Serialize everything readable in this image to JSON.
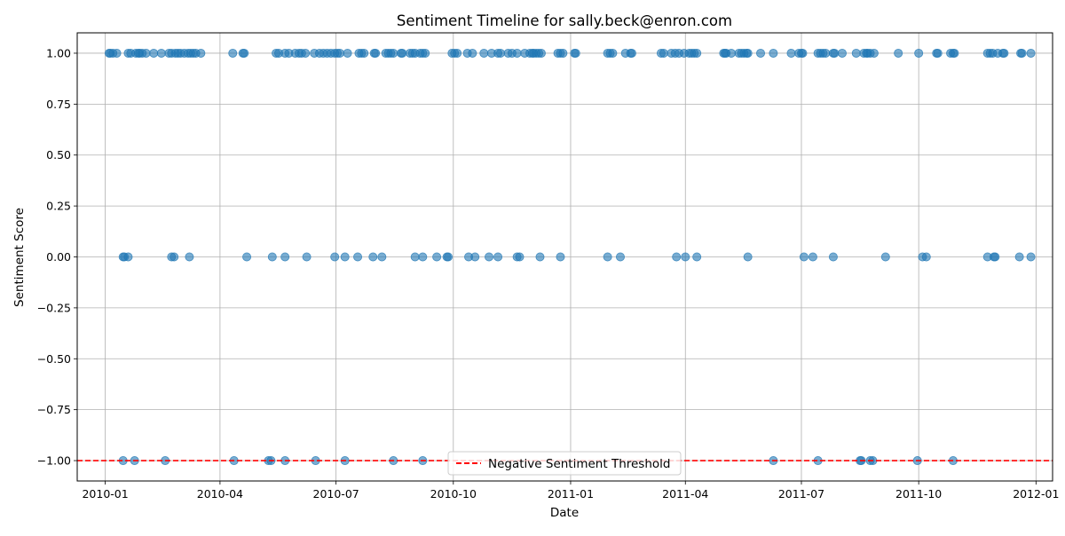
{
  "chart_data": {
    "type": "scatter",
    "title": "Sentiment Timeline for sally.beck@enron.com",
    "xlabel": "Date",
    "ylabel": "Sentiment Score",
    "xlim": [
      "2009-12-10",
      "2012-01-14"
    ],
    "ylim": [
      -1.1,
      1.1
    ],
    "x_ticks": [
      "2010-01",
      "2010-04",
      "2010-07",
      "2010-10",
      "2011-01",
      "2011-04",
      "2011-07",
      "2011-10",
      "2012-01"
    ],
    "x_tick_dates": [
      "2010-01-01",
      "2010-04-01",
      "2010-07-01",
      "2010-10-01",
      "2011-01-01",
      "2011-04-01",
      "2011-07-01",
      "2011-10-01",
      "2012-01-01"
    ],
    "y_ticks": [
      1.0,
      0.75,
      0.5,
      0.25,
      0.0,
      -0.25,
      -0.5,
      -0.75,
      -1.0
    ],
    "y_tick_labels": [
      "1.00",
      "0.75",
      "0.50",
      "0.25",
      "0.00",
      "−0.25",
      "−0.50",
      "−0.75",
      "−1.00"
    ],
    "grid": true,
    "series": [
      {
        "color": "#1f77b4",
        "points": [
          {
            "x": "2010-01-04",
            "y": 1
          },
          {
            "x": "2010-01-05",
            "y": 1
          },
          {
            "x": "2010-01-07",
            "y": 1
          },
          {
            "x": "2010-01-10",
            "y": 1
          },
          {
            "x": "2010-01-19",
            "y": 1
          },
          {
            "x": "2010-01-21",
            "y": 1
          },
          {
            "x": "2010-01-25",
            "y": 1
          },
          {
            "x": "2010-01-27",
            "y": 1
          },
          {
            "x": "2010-01-28",
            "y": 1
          },
          {
            "x": "2010-01-30",
            "y": 1
          },
          {
            "x": "2010-02-02",
            "y": 1
          },
          {
            "x": "2010-02-08",
            "y": 1
          },
          {
            "x": "2010-02-14",
            "y": 1
          },
          {
            "x": "2010-02-20",
            "y": 1
          },
          {
            "x": "2010-02-22",
            "y": 1
          },
          {
            "x": "2010-02-25",
            "y": 1
          },
          {
            "x": "2010-02-27",
            "y": 1
          },
          {
            "x": "2010-03-01",
            "y": 1
          },
          {
            "x": "2010-03-04",
            "y": 1
          },
          {
            "x": "2010-03-07",
            "y": 1
          },
          {
            "x": "2010-03-09",
            "y": 1
          },
          {
            "x": "2010-03-11",
            "y": 1
          },
          {
            "x": "2010-03-13",
            "y": 1
          },
          {
            "x": "2010-03-17",
            "y": 1
          },
          {
            "x": "2010-04-11",
            "y": 1
          },
          {
            "x": "2010-04-19",
            "y": 1
          },
          {
            "x": "2010-04-20",
            "y": 1
          },
          {
            "x": "2010-05-15",
            "y": 1
          },
          {
            "x": "2010-05-17",
            "y": 1
          },
          {
            "x": "2010-05-22",
            "y": 1
          },
          {
            "x": "2010-05-25",
            "y": 1
          },
          {
            "x": "2010-05-30",
            "y": 1
          },
          {
            "x": "2010-06-02",
            "y": 1
          },
          {
            "x": "2010-06-04",
            "y": 1
          },
          {
            "x": "2010-06-07",
            "y": 1
          },
          {
            "x": "2010-06-14",
            "y": 1
          },
          {
            "x": "2010-06-18",
            "y": 1
          },
          {
            "x": "2010-06-21",
            "y": 1
          },
          {
            "x": "2010-06-24",
            "y": 1
          },
          {
            "x": "2010-06-27",
            "y": 1
          },
          {
            "x": "2010-06-30",
            "y": 1
          },
          {
            "x": "2010-07-02",
            "y": 1
          },
          {
            "x": "2010-07-04",
            "y": 1
          },
          {
            "x": "2010-07-10",
            "y": 1
          },
          {
            "x": "2010-07-19",
            "y": 1
          },
          {
            "x": "2010-07-21",
            "y": 1
          },
          {
            "x": "2010-07-23",
            "y": 1
          },
          {
            "x": "2010-07-31",
            "y": 1
          },
          {
            "x": "2010-08-01",
            "y": 1
          },
          {
            "x": "2010-08-09",
            "y": 1
          },
          {
            "x": "2010-08-11",
            "y": 1
          },
          {
            "x": "2010-08-13",
            "y": 1
          },
          {
            "x": "2010-08-15",
            "y": 1
          },
          {
            "x": "2010-08-21",
            "y": 1
          },
          {
            "x": "2010-08-22",
            "y": 1
          },
          {
            "x": "2010-08-28",
            "y": 1
          },
          {
            "x": "2010-08-30",
            "y": 1
          },
          {
            "x": "2010-09-01",
            "y": 1
          },
          {
            "x": "2010-09-05",
            "y": 1
          },
          {
            "x": "2010-09-07",
            "y": 1
          },
          {
            "x": "2010-09-09",
            "y": 1
          },
          {
            "x": "2010-09-30",
            "y": 1
          },
          {
            "x": "2010-10-02",
            "y": 1
          },
          {
            "x": "2010-10-04",
            "y": 1
          },
          {
            "x": "2010-10-12",
            "y": 1
          },
          {
            "x": "2010-10-16",
            "y": 1
          },
          {
            "x": "2010-10-25",
            "y": 1
          },
          {
            "x": "2010-10-31",
            "y": 1
          },
          {
            "x": "2010-11-05",
            "y": 1
          },
          {
            "x": "2010-11-07",
            "y": 1
          },
          {
            "x": "2010-11-13",
            "y": 1
          },
          {
            "x": "2010-11-16",
            "y": 1
          },
          {
            "x": "2010-11-20",
            "y": 1
          },
          {
            "x": "2010-11-26",
            "y": 1
          },
          {
            "x": "2010-11-30",
            "y": 1
          },
          {
            "x": "2010-12-02",
            "y": 1
          },
          {
            "x": "2010-12-03",
            "y": 1
          },
          {
            "x": "2010-12-05",
            "y": 1
          },
          {
            "x": "2010-12-07",
            "y": 1
          },
          {
            "x": "2010-12-09",
            "y": 1
          },
          {
            "x": "2010-12-22",
            "y": 1
          },
          {
            "x": "2010-12-24",
            "y": 1
          },
          {
            "x": "2010-12-26",
            "y": 1
          },
          {
            "x": "2011-01-04",
            "y": 1
          },
          {
            "x": "2011-01-05",
            "y": 1
          },
          {
            "x": "2011-01-30",
            "y": 1
          },
          {
            "x": "2011-02-01",
            "y": 1
          },
          {
            "x": "2011-02-03",
            "y": 1
          },
          {
            "x": "2011-02-13",
            "y": 1
          },
          {
            "x": "2011-02-17",
            "y": 1
          },
          {
            "x": "2011-02-18",
            "y": 1
          },
          {
            "x": "2011-03-13",
            "y": 1
          },
          {
            "x": "2011-03-15",
            "y": 1
          },
          {
            "x": "2011-03-21",
            "y": 1
          },
          {
            "x": "2011-03-24",
            "y": 1
          },
          {
            "x": "2011-03-27",
            "y": 1
          },
          {
            "x": "2011-03-31",
            "y": 1
          },
          {
            "x": "2011-04-04",
            "y": 1
          },
          {
            "x": "2011-04-06",
            "y": 1
          },
          {
            "x": "2011-04-08",
            "y": 1
          },
          {
            "x": "2011-04-10",
            "y": 1
          },
          {
            "x": "2011-05-01",
            "y": 1
          },
          {
            "x": "2011-05-02",
            "y": 1
          },
          {
            "x": "2011-05-03",
            "y": 1
          },
          {
            "x": "2011-05-07",
            "y": 1
          },
          {
            "x": "2011-05-13",
            "y": 1
          },
          {
            "x": "2011-05-15",
            "y": 1
          },
          {
            "x": "2011-05-17",
            "y": 1
          },
          {
            "x": "2011-05-19",
            "y": 1
          },
          {
            "x": "2011-05-20",
            "y": 1
          },
          {
            "x": "2011-05-30",
            "y": 1
          },
          {
            "x": "2011-06-09",
            "y": 1
          },
          {
            "x": "2011-06-23",
            "y": 1
          },
          {
            "x": "2011-06-29",
            "y": 1
          },
          {
            "x": "2011-07-01",
            "y": 1
          },
          {
            "x": "2011-07-02",
            "y": 1
          },
          {
            "x": "2011-07-14",
            "y": 1
          },
          {
            "x": "2011-07-16",
            "y": 1
          },
          {
            "x": "2011-07-18",
            "y": 1
          },
          {
            "x": "2011-07-20",
            "y": 1
          },
          {
            "x": "2011-07-26",
            "y": 1
          },
          {
            "x": "2011-07-27",
            "y": 1
          },
          {
            "x": "2011-08-02",
            "y": 1
          },
          {
            "x": "2011-08-13",
            "y": 1
          },
          {
            "x": "2011-08-19",
            "y": 1
          },
          {
            "x": "2011-08-21",
            "y": 1
          },
          {
            "x": "2011-08-22",
            "y": 1
          },
          {
            "x": "2011-08-24",
            "y": 1
          },
          {
            "x": "2011-08-27",
            "y": 1
          },
          {
            "x": "2011-09-15",
            "y": 1
          },
          {
            "x": "2011-10-01",
            "y": 1
          },
          {
            "x": "2011-10-15",
            "y": 1
          },
          {
            "x": "2011-10-16",
            "y": 1
          },
          {
            "x": "2011-10-26",
            "y": 1
          },
          {
            "x": "2011-10-28",
            "y": 1
          },
          {
            "x": "2011-10-29",
            "y": 1
          },
          {
            "x": "2011-11-24",
            "y": 1
          },
          {
            "x": "2011-11-26",
            "y": 1
          },
          {
            "x": "2011-11-28",
            "y": 1
          },
          {
            "x": "2011-12-02",
            "y": 1
          },
          {
            "x": "2011-12-06",
            "y": 1
          },
          {
            "x": "2011-12-07",
            "y": 1
          },
          {
            "x": "2011-12-20",
            "y": 1
          },
          {
            "x": "2011-12-21",
            "y": 1
          },
          {
            "x": "2011-12-28",
            "y": 1
          },
          {
            "x": "2010-01-15",
            "y": 0
          },
          {
            "x": "2010-01-16",
            "y": 0
          },
          {
            "x": "2010-01-19",
            "y": 0
          },
          {
            "x": "2010-02-22",
            "y": 0
          },
          {
            "x": "2010-02-24",
            "y": 0
          },
          {
            "x": "2010-03-08",
            "y": 0
          },
          {
            "x": "2010-04-22",
            "y": 0
          },
          {
            "x": "2010-05-12",
            "y": 0
          },
          {
            "x": "2010-05-22",
            "y": 0
          },
          {
            "x": "2010-06-08",
            "y": 0
          },
          {
            "x": "2010-06-30",
            "y": 0
          },
          {
            "x": "2010-07-08",
            "y": 0
          },
          {
            "x": "2010-07-18",
            "y": 0
          },
          {
            "x": "2010-07-30",
            "y": 0
          },
          {
            "x": "2010-08-06",
            "y": 0
          },
          {
            "x": "2010-09-01",
            "y": 0
          },
          {
            "x": "2010-09-07",
            "y": 0
          },
          {
            "x": "2010-09-18",
            "y": 0
          },
          {
            "x": "2010-09-26",
            "y": 0
          },
          {
            "x": "2010-09-27",
            "y": 0
          },
          {
            "x": "2010-10-13",
            "y": 0
          },
          {
            "x": "2010-10-18",
            "y": 0
          },
          {
            "x": "2010-10-29",
            "y": 0
          },
          {
            "x": "2010-11-05",
            "y": 0
          },
          {
            "x": "2010-11-20",
            "y": 0
          },
          {
            "x": "2010-11-22",
            "y": 0
          },
          {
            "x": "2010-12-08",
            "y": 0
          },
          {
            "x": "2010-12-24",
            "y": 0
          },
          {
            "x": "2011-01-30",
            "y": 0
          },
          {
            "x": "2011-02-09",
            "y": 0
          },
          {
            "x": "2011-03-25",
            "y": 0
          },
          {
            "x": "2011-04-01",
            "y": 0
          },
          {
            "x": "2011-04-10",
            "y": 0
          },
          {
            "x": "2011-05-20",
            "y": 0
          },
          {
            "x": "2011-07-03",
            "y": 0
          },
          {
            "x": "2011-07-10",
            "y": 0
          },
          {
            "x": "2011-07-26",
            "y": 0
          },
          {
            "x": "2011-09-05",
            "y": 0
          },
          {
            "x": "2011-10-04",
            "y": 0
          },
          {
            "x": "2011-10-07",
            "y": 0
          },
          {
            "x": "2011-11-24",
            "y": 0
          },
          {
            "x": "2011-11-29",
            "y": 0
          },
          {
            "x": "2011-11-30",
            "y": 0
          },
          {
            "x": "2011-12-19",
            "y": 0
          },
          {
            "x": "2011-12-28",
            "y": 0
          },
          {
            "x": "2010-01-15",
            "y": -1
          },
          {
            "x": "2010-01-24",
            "y": -1
          },
          {
            "x": "2010-02-17",
            "y": -1
          },
          {
            "x": "2010-04-12",
            "y": -1
          },
          {
            "x": "2010-05-09",
            "y": -1
          },
          {
            "x": "2010-05-11",
            "y": -1
          },
          {
            "x": "2010-05-22",
            "y": -1
          },
          {
            "x": "2010-06-15",
            "y": -1
          },
          {
            "x": "2010-07-08",
            "y": -1
          },
          {
            "x": "2010-08-15",
            "y": -1
          },
          {
            "x": "2010-09-07",
            "y": -1
          },
          {
            "x": "2011-06-09",
            "y": -1
          },
          {
            "x": "2011-07-14",
            "y": -1
          },
          {
            "x": "2011-08-16",
            "y": -1
          },
          {
            "x": "2011-08-17",
            "y": -1
          },
          {
            "x": "2011-08-24",
            "y": -1
          },
          {
            "x": "2011-08-26",
            "y": -1
          },
          {
            "x": "2011-09-30",
            "y": -1
          },
          {
            "x": "2011-10-28",
            "y": -1
          }
        ]
      }
    ],
    "reference_lines": [
      {
        "y": -1.0,
        "color": "#ff0000",
        "style": "dashed",
        "label": "Negative Sentiment Threshold"
      }
    ],
    "legend": {
      "placement": "lower-center",
      "entries": [
        "Negative Sentiment Threshold"
      ]
    }
  }
}
